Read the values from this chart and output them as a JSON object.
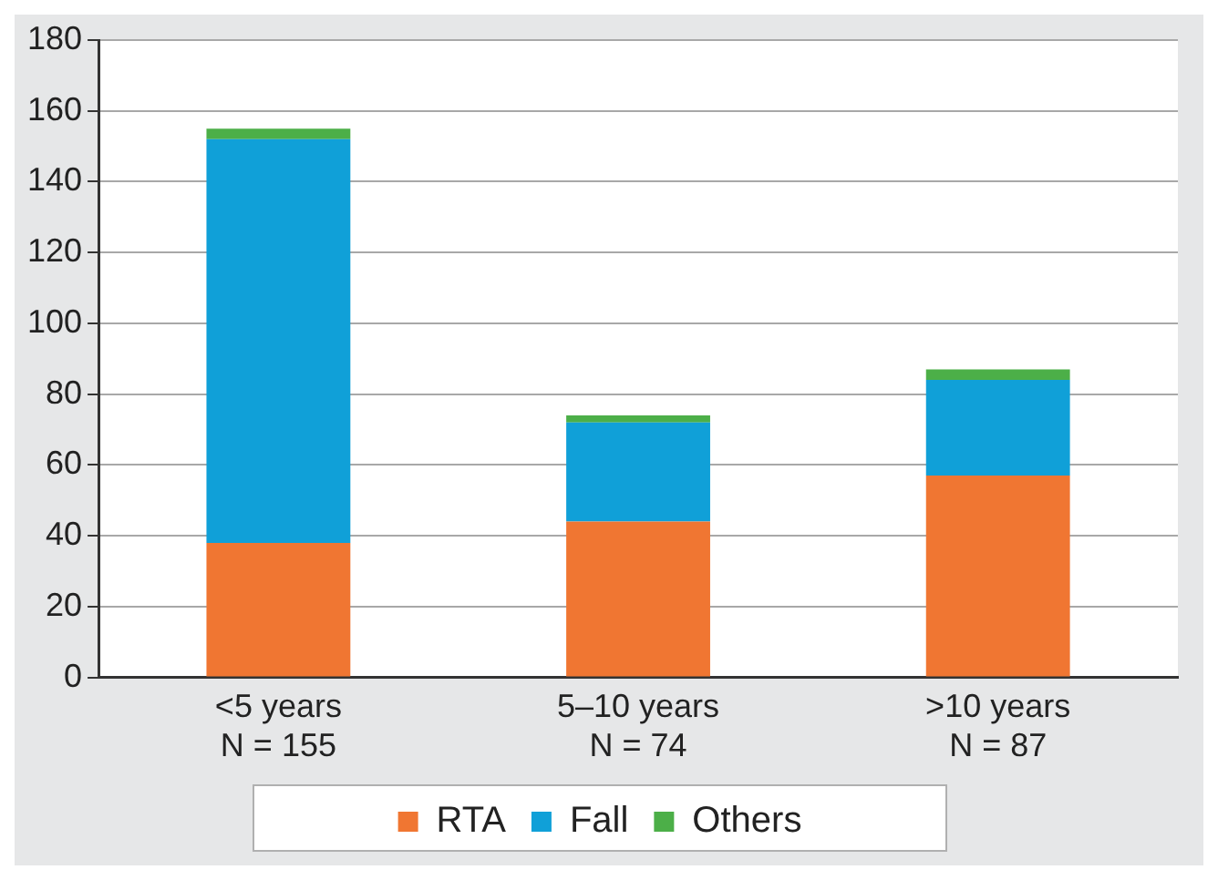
{
  "chart_data": {
    "type": "bar",
    "stacked": true,
    "categories": [
      "<5 years\nN = 155",
      "5–10 years\nN = 74",
      ">10 years\nN = 87"
    ],
    "series": [
      {
        "name": "RTA",
        "color": "#f07632",
        "values": [
          38,
          44,
          57
        ]
      },
      {
        "name": "Fall",
        "color": "#10a0d8",
        "values": [
          114,
          28,
          27
        ]
      },
      {
        "name": "Others",
        "color": "#4caf48",
        "values": [
          3,
          2,
          3
        ]
      }
    ],
    "ylim": [
      0,
      180
    ],
    "yticks": [
      0,
      20,
      40,
      60,
      80,
      100,
      120,
      140,
      160,
      180
    ],
    "grid": "y",
    "legend": "bottom"
  }
}
